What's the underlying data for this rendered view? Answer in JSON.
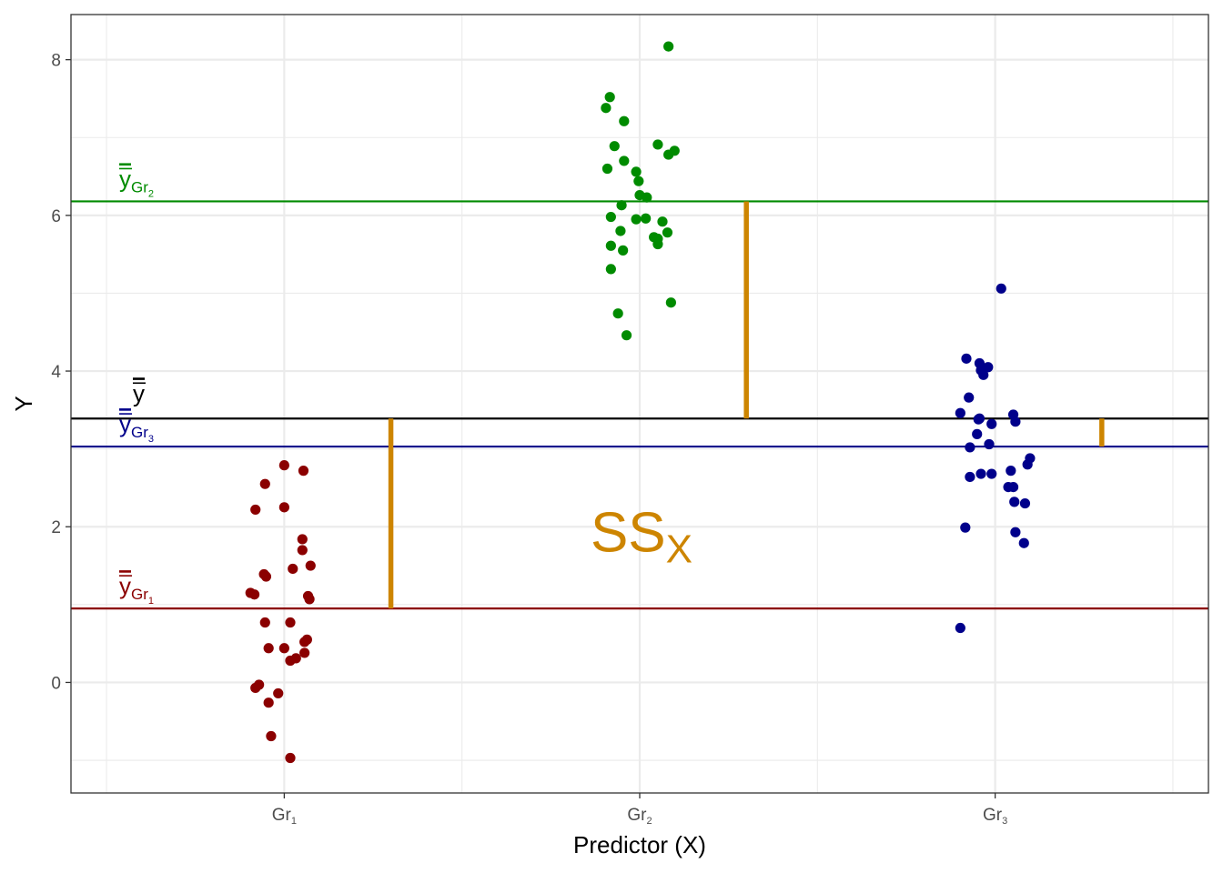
{
  "chart_data": {
    "type": "scatter",
    "title": "",
    "xlabel": "Predictor (X)",
    "ylabel": "Y",
    "ylim": [
      -1.42,
      8.58
    ],
    "yticks": [
      0,
      2,
      4,
      6,
      8
    ],
    "grid": true,
    "categories": [
      {
        "main": "Gr",
        "sub": "1"
      },
      {
        "main": "Gr",
        "sub": "2"
      },
      {
        "main": "Gr",
        "sub": "3"
      }
    ],
    "colors": {
      "group1": "#8b0000",
      "group2": "#008b00",
      "group3": "#00008b",
      "grand_mean": "#000000",
      "ss_segments": "#cd8500"
    },
    "series": [
      {
        "name": "Gr1",
        "points": [
          [
            0.0,
            2.79
          ],
          [
            0.054,
            2.72
          ],
          [
            -0.054,
            2.55
          ],
          [
            -0.081,
            2.22
          ],
          [
            0.0,
            2.25
          ],
          [
            0.051,
            1.84
          ],
          [
            0.051,
            1.7
          ],
          [
            0.074,
            1.5
          ],
          [
            0.024,
            1.46
          ],
          [
            -0.057,
            1.39
          ],
          [
            -0.051,
            1.36
          ],
          [
            -0.095,
            1.15
          ],
          [
            -0.084,
            1.13
          ],
          [
            0.067,
            1.11
          ],
          [
            0.071,
            1.07
          ],
          [
            -0.054,
            0.77
          ],
          [
            0.017,
            0.77
          ],
          [
            0.064,
            0.55
          ],
          [
            0.057,
            0.52
          ],
          [
            -0.044,
            0.44
          ],
          [
            0.0,
            0.44
          ],
          [
            0.057,
            0.38
          ],
          [
            0.033,
            0.31
          ],
          [
            0.017,
            0.28
          ],
          [
            -0.081,
            -0.07
          ],
          [
            -0.071,
            -0.03
          ],
          [
            -0.017,
            -0.14
          ],
          [
            -0.044,
            -0.26
          ],
          [
            -0.037,
            -0.69
          ],
          [
            0.017,
            -0.97
          ]
        ]
      },
      {
        "name": "Gr2",
        "points": [
          [
            0.081,
            8.17
          ],
          [
            -0.084,
            7.52
          ],
          [
            -0.095,
            7.38
          ],
          [
            -0.044,
            7.21
          ],
          [
            -0.071,
            6.89
          ],
          [
            0.051,
            6.91
          ],
          [
            0.098,
            6.83
          ],
          [
            0.081,
            6.78
          ],
          [
            -0.044,
            6.7
          ],
          [
            -0.091,
            6.6
          ],
          [
            -0.01,
            6.56
          ],
          [
            -0.003,
            6.44
          ],
          [
            0.0,
            6.26
          ],
          [
            0.02,
            6.23
          ],
          [
            -0.051,
            6.13
          ],
          [
            -0.081,
            5.98
          ],
          [
            -0.01,
            5.95
          ],
          [
            0.017,
            5.96
          ],
          [
            0.064,
            5.92
          ],
          [
            -0.054,
            5.8
          ],
          [
            0.078,
            5.78
          ],
          [
            0.04,
            5.72
          ],
          [
            0.051,
            5.7
          ],
          [
            0.051,
            5.63
          ],
          [
            -0.081,
            5.61
          ],
          [
            -0.047,
            5.55
          ],
          [
            -0.081,
            5.31
          ],
          [
            0.088,
            4.88
          ],
          [
            -0.061,
            4.74
          ],
          [
            -0.037,
            4.46
          ]
        ]
      },
      {
        "name": "Gr3",
        "points": [
          [
            0.017,
            5.06
          ],
          [
            -0.081,
            4.16
          ],
          [
            -0.044,
            4.1
          ],
          [
            -0.02,
            4.05
          ],
          [
            -0.04,
            4.01
          ],
          [
            -0.033,
            3.95
          ],
          [
            -0.074,
            3.66
          ],
          [
            -0.098,
            3.46
          ],
          [
            0.051,
            3.44
          ],
          [
            -0.044,
            3.39
          ],
          [
            -0.047,
            3.38
          ],
          [
            -0.01,
            3.32
          ],
          [
            0.057,
            3.35
          ],
          [
            -0.051,
            3.19
          ],
          [
            -0.017,
            3.06
          ],
          [
            -0.071,
            3.02
          ],
          [
            0.098,
            2.88
          ],
          [
            0.091,
            2.8
          ],
          [
            0.044,
            2.72
          ],
          [
            -0.071,
            2.64
          ],
          [
            -0.04,
            2.68
          ],
          [
            -0.01,
            2.68
          ],
          [
            0.037,
            2.51
          ],
          [
            0.051,
            2.51
          ],
          [
            0.054,
            2.32
          ],
          [
            0.084,
            2.3
          ],
          [
            -0.084,
            1.99
          ],
          [
            0.057,
            1.93
          ],
          [
            0.081,
            1.79
          ],
          [
            -0.098,
            0.7
          ]
        ]
      }
    ],
    "group_means": [
      0.95,
      6.18,
      3.03
    ],
    "grand_mean": 3.39,
    "mean_labels": [
      {
        "bar": "y",
        "sub_main": "Gr",
        "sub_index": "2",
        "value": 6.18,
        "color": "#008b00"
      },
      {
        "bar": "y",
        "sub_main": "",
        "sub_index": "",
        "value": 3.39,
        "color": "#000000"
      },
      {
        "bar": "y",
        "sub_main": "Gr",
        "sub_index": "3",
        "value": 3.03,
        "color": "#00008b"
      },
      {
        "bar": "y",
        "sub_main": "Gr",
        "sub_index": "1",
        "value": 0.95,
        "color": "#8b0000"
      }
    ],
    "ss_annotation": {
      "main": "SS",
      "sub": "X"
    }
  }
}
